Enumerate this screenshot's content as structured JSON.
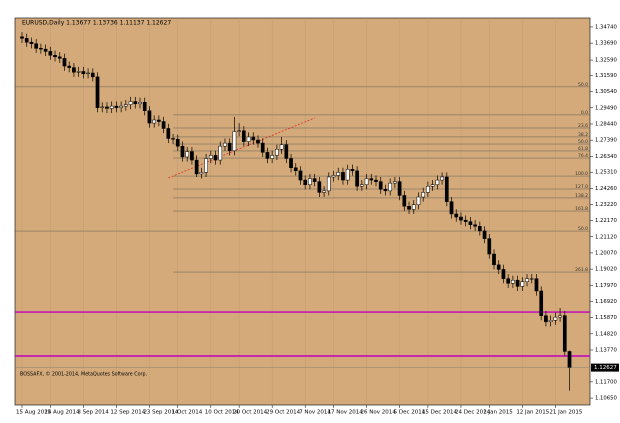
{
  "chart_data": {
    "type": "candlestick",
    "title": "EURUSD,Daily 1.13677 1.13736 1.11137 1.12627",
    "footer": "BOSSAFX, © 2001-2014, MetaQuotes Software Corp.",
    "background": "#d4aa7a",
    "bull_color": "#ffffff",
    "bear_color": "#000000",
    "categories": [
      "15 Aug 2014",
      null,
      null,
      null,
      null,
      null,
      "25 Aug 2014",
      null,
      null,
      null,
      null,
      null,
      null,
      "3 Sep 2014",
      null,
      null,
      null,
      null,
      null,
      null,
      "12 Sep 2014",
      null,
      null,
      null,
      null,
      null,
      null,
      "23 Sep 2014",
      null,
      null,
      null,
      null,
      null,
      "1 Oct 2014",
      null,
      null,
      null,
      null,
      null,
      null,
      "10 Oct 2014",
      null,
      null,
      null,
      null,
      null,
      "20 Oct 2014",
      null,
      null,
      null,
      null,
      null,
      null,
      "29 Oct 2014",
      null,
      null,
      null,
      null,
      null,
      null,
      "7 Nov 2014",
      null,
      null,
      null,
      null,
      null,
      "17 Nov 2014",
      null,
      null,
      null,
      null,
      null,
      null,
      "26 Nov 2014",
      null,
      null,
      null,
      null,
      null,
      null,
      "5 Dec 2014",
      null,
      null,
      null,
      null,
      null,
      "15 Dec 2014",
      null,
      null,
      null,
      null,
      null,
      null,
      "24 Dec 2014",
      null,
      null,
      null,
      null,
      null,
      "2 Jan 2015",
      null,
      null,
      null,
      null,
      null,
      null,
      "12 Jan 2015",
      null,
      null,
      null,
      null,
      null,
      null,
      "21 Jan 2015",
      null,
      null,
      null
    ],
    "open": [
      1.341,
      1.34,
      1.3375,
      1.3365,
      1.3335,
      1.333,
      1.3315,
      1.329,
      1.328,
      1.327,
      1.322,
      1.321,
      1.318,
      1.3185,
      1.317,
      1.3175,
      1.315,
      1.295,
      1.2955,
      1.2945,
      1.296,
      1.295,
      1.296,
      1.297,
      1.299,
      1.2975,
      1.2985,
      1.293,
      1.285,
      1.287,
      1.286,
      1.2815,
      1.275,
      1.2745,
      1.27,
      1.263,
      1.2665,
      1.261,
      1.252,
      1.253,
      1.262,
      1.264,
      1.261,
      1.27,
      1.272,
      1.267,
      1.2795,
      1.28,
      1.273,
      1.276,
      1.274,
      1.272,
      1.266,
      1.262,
      1.264,
      1.268,
      1.271,
      1.262,
      1.256,
      1.254,
      1.248,
      1.245,
      1.249,
      1.247,
      1.24,
      1.241,
      1.25,
      1.251,
      1.253,
      1.248,
      1.255,
      1.254,
      1.244,
      1.245,
      1.249,
      1.248,
      1.247,
      1.242,
      1.241,
      1.246,
      1.247,
      1.238,
      1.231,
      1.229,
      1.232,
      1.237,
      1.24,
      1.244,
      1.245,
      1.248,
      1.25,
      1.234,
      1.226,
      1.224,
      1.222,
      1.221,
      1.219,
      1.218,
      1.215,
      1.21,
      1.2,
      1.193,
      1.19,
      1.184,
      1.181,
      1.183,
      1.179,
      1.182,
      1.184,
      1.184,
      1.176,
      1.16,
      1.156,
      1.157,
      1.159,
      1.16,
      1.13677
    ],
    "high": [
      1.344,
      1.343,
      1.3405,
      1.3395,
      1.3365,
      1.336,
      1.3345,
      1.332,
      1.331,
      1.33,
      1.325,
      1.324,
      1.3215,
      1.3215,
      1.3205,
      1.3205,
      1.318,
      1.2985,
      1.2985,
      1.299,
      1.299,
      1.299,
      1.3,
      1.302,
      1.302,
      1.3015,
      1.3015,
      1.296,
      1.29,
      1.29,
      1.289,
      1.2845,
      1.278,
      1.2775,
      1.273,
      1.2695,
      1.2695,
      1.264,
      1.256,
      1.265,
      1.267,
      1.267,
      1.273,
      1.275,
      1.275,
      1.289,
      1.285,
      1.283,
      1.279,
      1.279,
      1.277,
      1.275,
      1.269,
      1.267,
      1.271,
      1.276,
      1.274,
      1.265,
      1.259,
      1.257,
      1.251,
      1.252,
      1.252,
      1.25,
      1.244,
      1.253,
      1.254,
      1.256,
      1.256,
      1.258,
      1.258,
      1.257,
      1.248,
      1.252,
      1.252,
      1.251,
      1.25,
      1.245,
      1.249,
      1.25,
      1.25,
      1.241,
      1.234,
      1.235,
      1.24,
      1.243,
      1.247,
      1.248,
      1.251,
      1.253,
      1.253,
      1.237,
      1.229,
      1.227,
      1.225,
      1.224,
      1.222,
      1.221,
      1.218,
      1.213,
      1.203,
      1.196,
      1.193,
      1.187,
      1.186,
      1.186,
      1.185,
      1.187,
      1.187,
      1.187,
      1.179,
      1.163,
      1.16,
      1.162,
      1.165,
      1.163,
      1.13736
    ],
    "low": [
      1.337,
      1.3345,
      1.3335,
      1.3305,
      1.33,
      1.3285,
      1.326,
      1.325,
      1.324,
      1.319,
      1.318,
      1.315,
      1.315,
      1.314,
      1.314,
      1.312,
      1.292,
      1.292,
      1.2915,
      1.2915,
      1.292,
      1.292,
      1.293,
      1.294,
      1.2945,
      1.2945,
      1.29,
      1.282,
      1.282,
      1.283,
      1.2785,
      1.272,
      1.2715,
      1.267,
      1.26,
      1.26,
      1.258,
      1.25,
      1.249,
      1.25,
      1.259,
      1.258,
      1.258,
      1.267,
      1.264,
      1.264,
      1.2765,
      1.27,
      1.27,
      1.271,
      1.269,
      1.263,
      1.259,
      1.259,
      1.261,
      1.265,
      1.259,
      1.253,
      1.251,
      1.245,
      1.242,
      1.242,
      1.244,
      1.237,
      1.237,
      1.238,
      1.247,
      1.248,
      1.245,
      1.245,
      1.251,
      1.241,
      1.241,
      1.242,
      1.245,
      1.244,
      1.239,
      1.238,
      1.238,
      1.243,
      1.235,
      1.228,
      1.226,
      1.226,
      1.229,
      1.234,
      1.237,
      1.241,
      1.242,
      1.245,
      1.231,
      1.223,
      1.221,
      1.219,
      1.218,
      1.216,
      1.215,
      1.212,
      1.207,
      1.197,
      1.19,
      1.187,
      1.181,
      1.178,
      1.178,
      1.176,
      1.176,
      1.179,
      1.181,
      1.173,
      1.157,
      1.153,
      1.153,
      1.154,
      1.156,
      1.134,
      1.11137
    ],
    "close": [
      1.34,
      1.3375,
      1.3365,
      1.3335,
      1.333,
      1.3315,
      1.329,
      1.328,
      1.327,
      1.322,
      1.321,
      1.318,
      1.3185,
      1.317,
      1.3175,
      1.315,
      1.295,
      1.2955,
      1.2945,
      1.296,
      1.295,
      1.296,
      1.297,
      1.299,
      1.2975,
      1.2985,
      1.293,
      1.285,
      1.287,
      1.286,
      1.2815,
      1.275,
      1.2745,
      1.27,
      1.263,
      1.2665,
      1.261,
      1.252,
      1.253,
      1.262,
      1.264,
      1.261,
      1.27,
      1.272,
      1.267,
      1.2795,
      1.28,
      1.273,
      1.276,
      1.274,
      1.272,
      1.266,
      1.262,
      1.264,
      1.268,
      1.271,
      1.262,
      1.256,
      1.254,
      1.248,
      1.245,
      1.249,
      1.247,
      1.24,
      1.241,
      1.25,
      1.251,
      1.253,
      1.248,
      1.255,
      1.254,
      1.244,
      1.245,
      1.249,
      1.248,
      1.247,
      1.242,
      1.241,
      1.246,
      1.247,
      1.238,
      1.231,
      1.229,
      1.232,
      1.237,
      1.24,
      1.244,
      1.245,
      1.248,
      1.25,
      1.234,
      1.226,
      1.224,
      1.222,
      1.221,
      1.219,
      1.218,
      1.215,
      1.21,
      1.2,
      1.193,
      1.19,
      1.184,
      1.181,
      1.183,
      1.179,
      1.182,
      1.184,
      1.184,
      1.176,
      1.16,
      1.156,
      1.157,
      1.159,
      1.16,
      1.13677,
      1.12627
    ],
    "ylim": [
      1.102,
      1.3532
    ],
    "yticks": [
      {
        "value": 1.3474,
        "label": "1.34740"
      },
      {
        "value": 1.3369,
        "label": "1.33690"
      },
      {
        "value": 1.3259,
        "label": "1.32590"
      },
      {
        "value": 1.3159,
        "label": "1.31590"
      },
      {
        "value": 1.3054,
        "label": "1.30540"
      },
      {
        "value": 1.2949,
        "label": "1.29490"
      },
      {
        "value": 1.2844,
        "label": "1.28440"
      },
      {
        "value": 1.2739,
        "label": "1.27390"
      },
      {
        "value": 1.2634,
        "label": "1.26340"
      },
      {
        "value": 1.2531,
        "label": "1.25310"
      },
      {
        "value": 1.2426,
        "label": "1.24260"
      },
      {
        "value": 1.2322,
        "label": "1.23220"
      },
      {
        "value": 1.2217,
        "label": "1.22170"
      },
      {
        "value": 1.2112,
        "label": "1.21120"
      },
      {
        "value": 1.2007,
        "label": "1.20070"
      },
      {
        "value": 1.1902,
        "label": "1.19020"
      },
      {
        "value": 1.1797,
        "label": "1.17970"
      },
      {
        "value": 1.1692,
        "label": "1.16920"
      },
      {
        "value": 1.1587,
        "label": "1.15870"
      },
      {
        "value": 1.1482,
        "label": "1.14820"
      },
      {
        "value": 1.1377,
        "label": "1.13770"
      },
      {
        "value": 1.117,
        "label": "1.11700"
      },
      {
        "value": 1.1065,
        "label": "1.10650"
      }
    ],
    "levels": [
      {
        "value": 1.3085,
        "label": "50.0",
        "from": 0
      },
      {
        "value": 1.2903,
        "label": "0.0",
        "from": 32
      },
      {
        "value": 1.2818,
        "label": "23.6",
        "from": 32
      },
      {
        "value": 1.276,
        "label": "38.2",
        "from": 32
      },
      {
        "value": 1.2714,
        "label": "50.0",
        "from": 32
      },
      {
        "value": 1.2669,
        "label": "61.8",
        "from": 32
      },
      {
        "value": 1.2623,
        "label": "76.4",
        "from": 32
      },
      {
        "value": 1.2506,
        "label": "100.0",
        "from": 32
      },
      {
        "value": 1.2422,
        "label": "127.0",
        "from": 32
      },
      {
        "value": 1.2364,
        "label": "138.2",
        "from": 32
      },
      {
        "value": 1.2279,
        "label": "161.8",
        "from": 32
      },
      {
        "value": 1.2149,
        "label": "50.0",
        "from": 0
      },
      {
        "value": 1.1883,
        "label": "261.8",
        "from": 32
      }
    ],
    "hlines": [
      {
        "value": 1.1623,
        "color": "#c000c0"
      },
      {
        "value": 1.1338,
        "color": "#c000c0"
      }
    ],
    "trendline": {
      "x": [
        31,
        62
      ],
      "y": [
        1.2494,
        1.2883
      ],
      "color": "#e03020"
    }
  }
}
